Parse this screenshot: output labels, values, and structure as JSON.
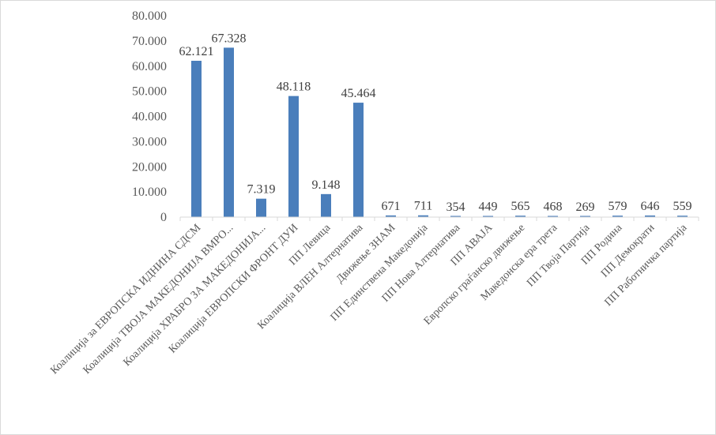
{
  "chart_data": {
    "type": "bar",
    "title": "",
    "xlabel": "",
    "ylabel": "",
    "ylim": [
      0,
      80000
    ],
    "yticks": [
      "0",
      "10.000",
      "20.000",
      "30.000",
      "40.000",
      "50.000",
      "60.000",
      "70.000",
      "80.000"
    ],
    "grid": false,
    "legend": "none",
    "bar_color": "#4a7ebb",
    "categories": [
      "Коалиција за ЕВРОПСКА ИДНИНА СДСМ",
      "Коалиција ТВОЈА МАКЕДОНИЈА ВМРО...",
      "Коалиција ХРАБРО ЗА МАКЕДОНИЈА...",
      "Коалиција ЕВРОПСКИ ФРОНТ ДУИ",
      "ПП Левица",
      "Коалиција ВЛЕН Алтернатива",
      "Движење ЗНАМ",
      "ПП Единствена Македонија",
      "ПП Нова Алтернатива",
      "ПП АВАЈА",
      "Европско граѓанско движење",
      "Македонска ера трета",
      "ПП Твоја Партија",
      "ПП Родина",
      "ПП Демократи",
      "ПП Работничка партија"
    ],
    "values": [
      62121,
      67328,
      7319,
      48118,
      9148,
      45464,
      671,
      711,
      354,
      449,
      565,
      468,
      269,
      579,
      646,
      559
    ],
    "data_labels": [
      "62.121",
      "67.328",
      "7.319",
      "48.118",
      "9.148",
      "45.464",
      "671",
      "711",
      "354",
      "449",
      "565",
      "468",
      "269",
      "579",
      "646",
      "559"
    ]
  }
}
